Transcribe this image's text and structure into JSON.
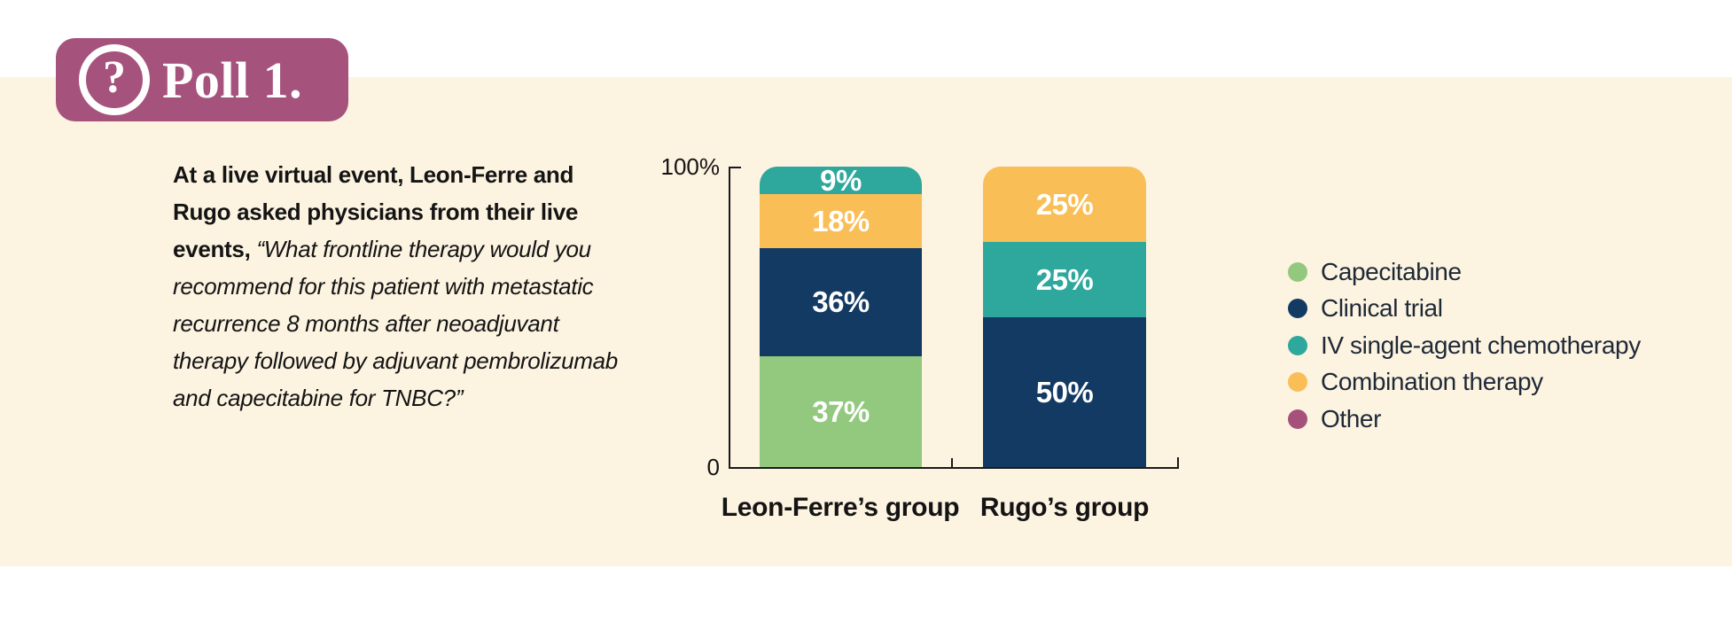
{
  "badge": {
    "title": "Poll 1.",
    "icon_glyph": "?"
  },
  "question": {
    "bold_text": "At a live virtual event, Leon-Ferre and Rugo asked physicians from their live events, ",
    "italic_text": "“What frontline therapy would you recommend for this patient with metastatic recurrence 8 months after neoadjuvant therapy followed by adjuvant pembrolizumab and capecitabine for TNBC?”"
  },
  "chart_data": {
    "type": "bar",
    "stacked": true,
    "grid": false,
    "legend_position": "right",
    "categories": [
      "Leon-Ferre’s group",
      "Rugo’s group"
    ],
    "y_axis": {
      "top_label": "100%",
      "bottom_label": "0",
      "min": 0,
      "max": 100
    },
    "series": [
      {
        "name": "Capecitabine",
        "values": [
          37,
          0
        ]
      },
      {
        "name": "Clinical trial",
        "values": [
          36,
          50
        ]
      },
      {
        "name": "IV single-agent chemotherapy",
        "values": [
          9,
          25
        ]
      },
      {
        "name": "Combination therapy",
        "values": [
          18,
          25
        ]
      },
      {
        "name": "Other",
        "values": [
          0,
          0
        ]
      }
    ],
    "bars": [
      {
        "category": "Leon-Ferre’s group",
        "segments": [
          {
            "key": "iv-single-agent-chemotherapy",
            "label": "IV single-agent chemotherapy",
            "value": 9,
            "display": "9%",
            "color": "#2EA79D"
          },
          {
            "key": "combination-therapy",
            "label": "Combination therapy",
            "value": 18,
            "display": "18%",
            "color": "#F9BE56"
          },
          {
            "key": "clinical-trial",
            "label": "Clinical trial",
            "value": 36,
            "display": "36%",
            "color": "#123A63"
          },
          {
            "key": "capecitabine",
            "label": "Capecitabine",
            "value": 37,
            "display": "37%",
            "color": "#92C97E"
          }
        ]
      },
      {
        "category": "Rugo’s group",
        "segments": [
          {
            "key": "combination-therapy",
            "label": "Combination therapy",
            "value": 25,
            "display": "25%",
            "color": "#F9BE56"
          },
          {
            "key": "iv-single-agent-chemotherapy",
            "label": "IV single-agent chemotherapy",
            "value": 25,
            "display": "25%",
            "color": "#2EA79D"
          },
          {
            "key": "clinical-trial",
            "label": "Clinical trial",
            "value": 50,
            "display": "50%",
            "color": "#123A63"
          }
        ]
      }
    ],
    "legend": [
      {
        "key": "capecitabine",
        "label": "Capecitabine",
        "color": "#92C97E"
      },
      {
        "key": "clinical-trial",
        "label": "Clinical trial",
        "color": "#123A63"
      },
      {
        "key": "iv-single-agent-chemotherapy",
        "label": "IV single-agent chemotherapy",
        "color": "#2EA79D"
      },
      {
        "key": "combination-therapy",
        "label": "Combination therapy",
        "color": "#F9BE56"
      },
      {
        "key": "other",
        "label": "Other",
        "color": "#A5517C"
      }
    ]
  },
  "colors": {
    "background_panel": "#FCF3E1",
    "page_background": "#FFFFFF",
    "badge_background": "#A5527C",
    "axis": "#1A1A1A",
    "bar_value_text": "#FFFFFF"
  }
}
